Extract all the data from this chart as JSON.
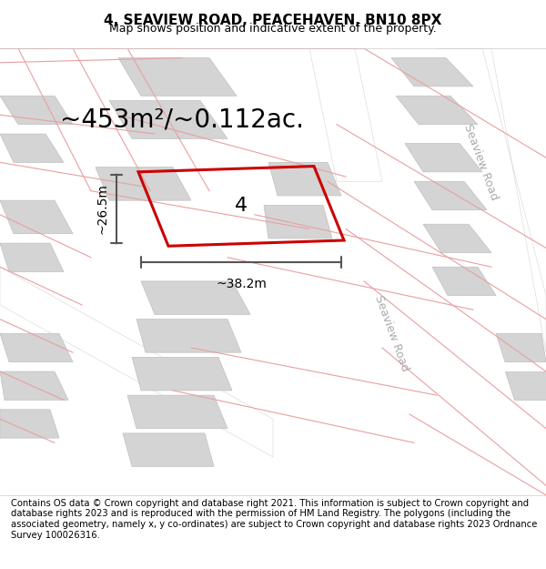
{
  "title": "4, SEAVIEW ROAD, PEACEHAVEN, BN10 8PX",
  "subtitle": "Map shows position and indicative extent of the property.",
  "footer": "Contains OS data © Crown copyright and database right 2021. This information is subject to Crown copyright and database rights 2023 and is reproduced with the permission of HM Land Registry. The polygons (including the associated geometry, namely x, y co-ordinates) are subject to Crown copyright and database rights 2023 Ordnance Survey 100026316.",
  "area_text": "~453m²/~0.112ac.",
  "dim_width": "~38.2m",
  "dim_height": "~26.5m",
  "plot_number": "4",
  "bg_color": "#f5f5f5",
  "map_bg": "#f0f0f0",
  "road_color": "#ffffff",
  "plot_outline_color": "#cc0000",
  "plot_fill_color": "#f5f5f5",
  "building_fill": "#d8d8d8",
  "building_edge": "#bbbbbb",
  "road_label_color": "#aaaaaa",
  "dim_color": "#555555",
  "title_fontsize": 11,
  "subtitle_fontsize": 9,
  "footer_fontsize": 7.2,
  "area_fontsize": 20,
  "plot_label_fontsize": 16,
  "road_label_fontsize": 9,
  "dim_fontsize": 10
}
